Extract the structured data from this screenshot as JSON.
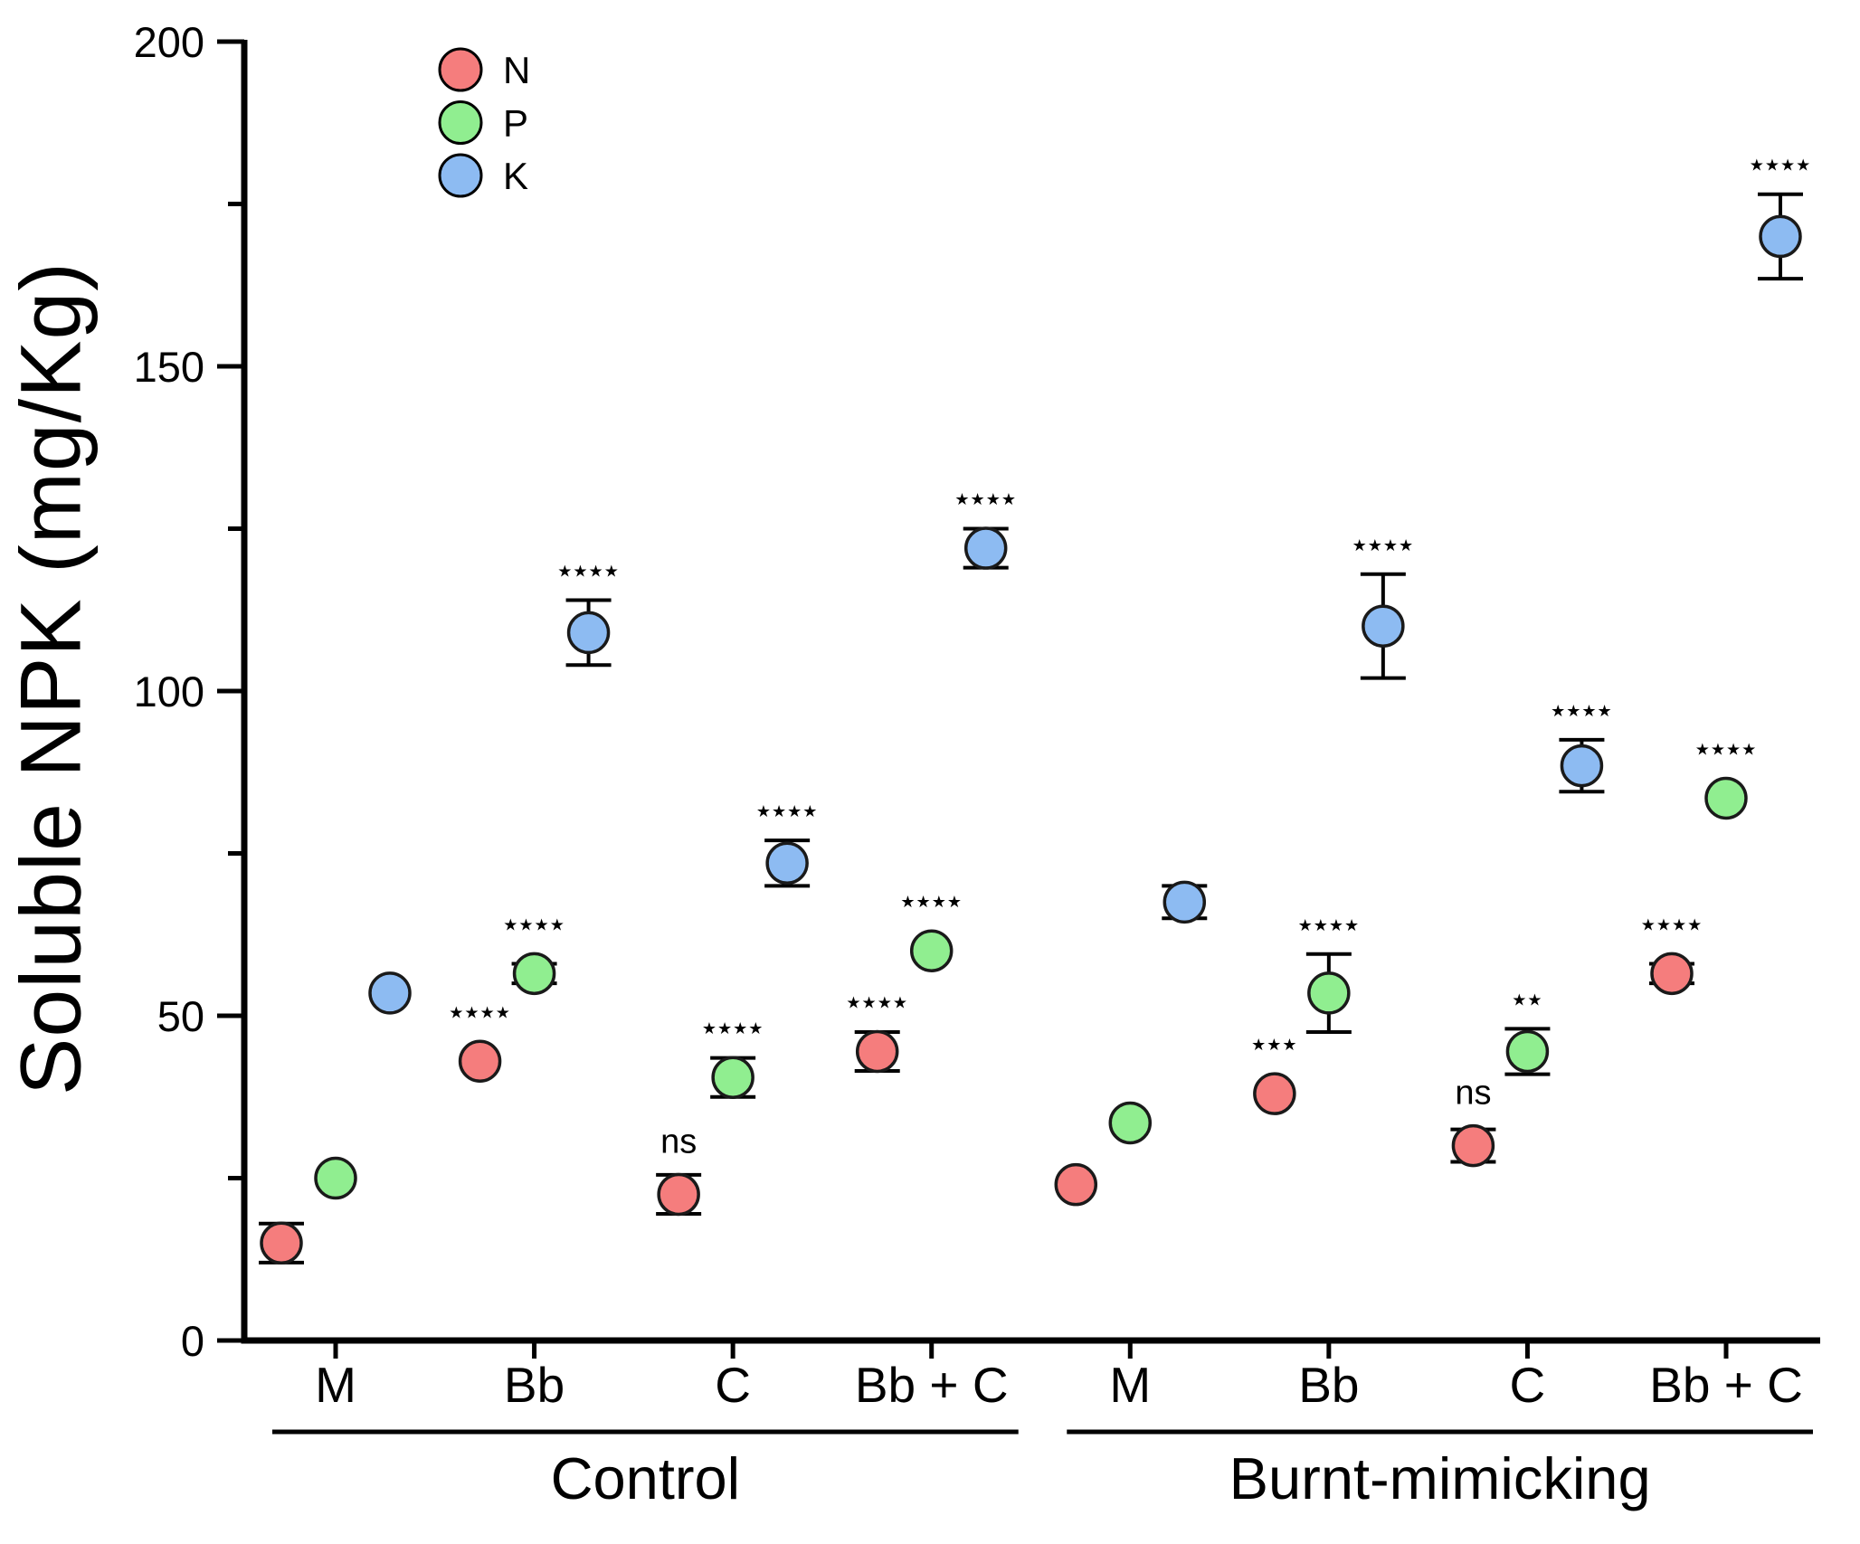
{
  "figure": {
    "kind": "scatter-plot-figure",
    "background": "#ffffff",
    "axis_color": "#000000"
  },
  "chart_data": {
    "type": "scatter",
    "title": "",
    "xlabel": "",
    "ylabel": "Soluble NPK (mg/Kg)",
    "ylim": [
      0,
      200
    ],
    "yticks_major": [
      0,
      50,
      100,
      150,
      200
    ],
    "yticks_minor": [
      25,
      75,
      125,
      175
    ],
    "grid": false,
    "legend": {
      "position": "top-left",
      "entries": [
        {
          "label": "N",
          "color": "#f57d7d"
        },
        {
          "label": "P",
          "color": "#90ee90"
        },
        {
          "label": "K",
          "color": "#8dbbf2"
        }
      ]
    },
    "series_order": [
      "N",
      "P",
      "K"
    ],
    "groups": [
      {
        "label": "Control",
        "categories": [
          "M",
          "Bb",
          "C",
          "Bb + C"
        ],
        "points": [
          {
            "category": "M",
            "series": "N",
            "value": 15,
            "error": 3,
            "sig": ""
          },
          {
            "category": "M",
            "series": "P",
            "value": 25,
            "error": 0,
            "sig": ""
          },
          {
            "category": "M",
            "series": "K",
            "value": 53.5,
            "error": 0,
            "sig": ""
          },
          {
            "category": "Bb",
            "series": "N",
            "value": 43,
            "error": 0,
            "sig": "****"
          },
          {
            "category": "Bb",
            "series": "P",
            "value": 56.5,
            "error": 1.5,
            "sig": "****"
          },
          {
            "category": "Bb",
            "series": "K",
            "value": 109,
            "error": 5,
            "sig": "****"
          },
          {
            "category": "C",
            "series": "N",
            "value": 22.5,
            "error": 3,
            "sig": "ns"
          },
          {
            "category": "C",
            "series": "P",
            "value": 40.5,
            "error": 3,
            "sig": "****"
          },
          {
            "category": "C",
            "series": "K",
            "value": 73.5,
            "error": 3.5,
            "sig": "****"
          },
          {
            "category": "Bb + C",
            "series": "N",
            "value": 44.5,
            "error": 3,
            "sig": "****"
          },
          {
            "category": "Bb + C",
            "series": "P",
            "value": 60,
            "error": 0,
            "sig": "****"
          },
          {
            "category": "Bb + C",
            "series": "K",
            "value": 122,
            "error": 3,
            "sig": "****"
          }
        ]
      },
      {
        "label": "Burnt-mimicking",
        "categories": [
          "M",
          "Bb",
          "C",
          "Bb + C"
        ],
        "points": [
          {
            "category": "M",
            "series": "N",
            "value": 24,
            "error": 0,
            "sig": ""
          },
          {
            "category": "M",
            "series": "P",
            "value": 33.5,
            "error": 0,
            "sig": ""
          },
          {
            "category": "M",
            "series": "K",
            "value": 67.5,
            "error": 2.5,
            "sig": ""
          },
          {
            "category": "Bb",
            "series": "N",
            "value": 38,
            "error": 0,
            "sig": "***"
          },
          {
            "category": "Bb",
            "series": "P",
            "value": 53.5,
            "error": 6,
            "sig": "****"
          },
          {
            "category": "Bb",
            "series": "K",
            "value": 110,
            "error": 8,
            "sig": "****"
          },
          {
            "category": "C",
            "series": "N",
            "value": 30,
            "error": 2.5,
            "sig": "ns"
          },
          {
            "category": "C",
            "series": "P",
            "value": 44.5,
            "error": 3.5,
            "sig": "**"
          },
          {
            "category": "C",
            "series": "K",
            "value": 88.5,
            "error": 4,
            "sig": "****"
          },
          {
            "category": "Bb + C",
            "series": "N",
            "value": 56.5,
            "error": 1.5,
            "sig": "****"
          },
          {
            "category": "Bb + C",
            "series": "P",
            "value": 83.5,
            "error": 0,
            "sig": "****"
          },
          {
            "category": "Bb + C",
            "series": "K",
            "value": 170,
            "error": 6.5,
            "sig": "****"
          }
        ]
      }
    ]
  }
}
